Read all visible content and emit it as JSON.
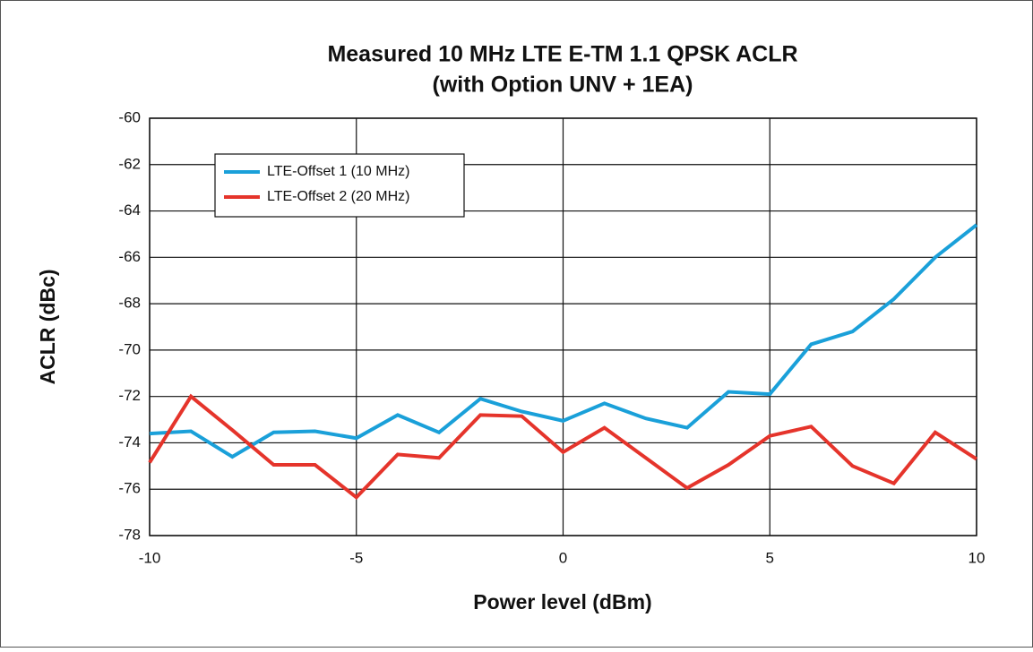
{
  "chart_data": {
    "type": "line",
    "title": "Measured 10 MHz LTE E-TM 1.1 QPSK ACLR",
    "subtitle": "(with Option UNV + 1EA)",
    "x_label": "Power level (dBm)",
    "y_label": "ACLR (dBc)",
    "x": [
      -10,
      -9,
      -8,
      -7,
      -6,
      -5,
      -4,
      -3,
      -2,
      -1,
      0,
      1,
      2,
      3,
      4,
      5,
      6,
      7,
      8,
      9,
      10
    ],
    "series": [
      {
        "name": "LTE-Offset 1 (10 MHz)",
        "color": "#1aa0d9",
        "values": [
          -73.6,
          -73.5,
          -74.6,
          -73.55,
          -73.5,
          -73.8,
          -72.8,
          -73.55,
          -72.1,
          -72.65,
          -73.05,
          -72.3,
          -72.95,
          -73.35,
          -71.8,
          -71.9,
          -69.75,
          -69.2,
          -67.8,
          -66.0,
          -64.6
        ]
      },
      {
        "name": "LTE-Offset 2 (20 MHz)",
        "color": "#e5342b",
        "values": [
          -74.85,
          -72.0,
          -73.45,
          -74.95,
          -74.95,
          -76.35,
          -74.5,
          -74.65,
          -72.8,
          -72.85,
          -74.4,
          -73.35,
          -74.65,
          -75.95,
          -74.95,
          -73.7,
          -73.3,
          -75.0,
          -75.75,
          -73.55,
          -74.7
        ]
      }
    ],
    "xlim": [
      -10,
      10
    ],
    "xticks": [
      -10,
      -5,
      0,
      5,
      10
    ],
    "ylim": [
      -78,
      -60
    ],
    "yticks": [
      -78,
      -76,
      -74,
      -72,
      -70,
      -68,
      -66,
      -64,
      -62,
      -60
    ],
    "grid": true,
    "legend": "upper left"
  }
}
